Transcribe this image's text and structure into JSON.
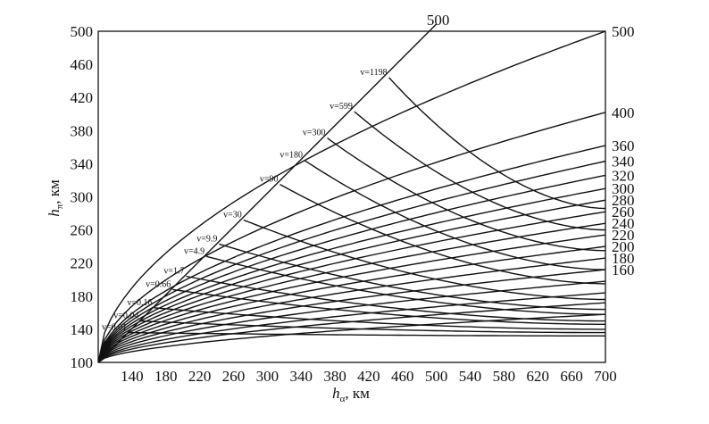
{
  "chart_data": {
    "type": "line",
    "xlabel": {
      "symbol": "h",
      "sub": "α",
      "unit": ", км"
    },
    "ylabel": {
      "symbol": "h",
      "sub": "π",
      "unit": ", км"
    },
    "xlim": [
      100,
      700
    ],
    "ylim": [
      100,
      500
    ],
    "x_ticks": [
      140,
      180,
      220,
      260,
      300,
      340,
      380,
      420,
      460,
      500,
      540,
      580,
      620,
      660,
      700
    ],
    "y_ticks": [
      100,
      140,
      180,
      220,
      260,
      300,
      340,
      380,
      420,
      460,
      500
    ],
    "grid": false,
    "diagonal_label": "500",
    "constant_level_curves": [
      {
        "label": "500",
        "end_y": 500
      },
      {
        "label": "400",
        "end_y": 402
      },
      {
        "label": "360",
        "end_y": 362
      },
      {
        "label": "340",
        "end_y": 343
      },
      {
        "label": "320",
        "end_y": 326
      },
      {
        "label": "300",
        "end_y": 310
      },
      {
        "label": "280",
        "end_y": 296
      },
      {
        "label": "260",
        "end_y": 282
      },
      {
        "label": "240",
        "end_y": 268
      },
      {
        "label": "220",
        "end_y": 254
      },
      {
        "label": "200",
        "end_y": 240
      },
      {
        "label": "180",
        "end_y": 226
      },
      {
        "label": "160",
        "end_y": 212
      },
      {
        "label": "",
        "end_y": 198
      },
      {
        "label": "",
        "end_y": 184
      },
      {
        "label": "",
        "end_y": 172
      },
      {
        "label": "",
        "end_y": 158
      }
    ],
    "lifetime_curves": [
      {
        "label": "v=1198",
        "start_x": 444,
        "end_y": 286,
        "right_label": "280"
      },
      {
        "label": "v=599",
        "start_x": 403,
        "end_y": 260,
        "right_label": "260"
      },
      {
        "label": "v=300",
        "start_x": 371,
        "end_y": 235,
        "right_label": "240"
      },
      {
        "label": "v=180",
        "start_x": 344,
        "end_y": 212,
        "right_label": "220"
      },
      {
        "label": "v=90",
        "start_x": 315,
        "end_y": 195,
        "right_label": "200"
      },
      {
        "label": "v=30",
        "start_x": 272,
        "end_y": 176,
        "right_label": "180"
      },
      {
        "label": "v=9.9",
        "start_x": 243,
        "end_y": 164,
        "right_label": "160"
      },
      {
        "label": "v=4.9",
        "start_x": 228,
        "end_y": 158,
        "right_label": ""
      },
      {
        "label": "v=1.7",
        "start_x": 204,
        "end_y": 150,
        "right_label": ""
      },
      {
        "label": "v=0.66",
        "start_x": 188,
        "end_y": 146,
        "right_label": ""
      },
      {
        "label": "v=0.16",
        "start_x": 166,
        "end_y": 140,
        "right_label": ""
      },
      {
        "label": "v=0.04",
        "start_x": 150,
        "end_y": 136,
        "right_label": ""
      },
      {
        "label": "v=0.01",
        "start_x": 136,
        "end_y": 132,
        "right_label": ""
      }
    ]
  }
}
